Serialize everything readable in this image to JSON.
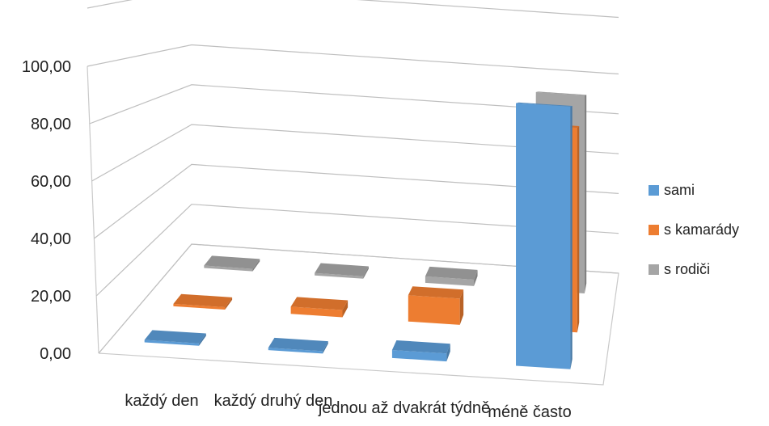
{
  "chart_data": {
    "type": "bar",
    "title": "",
    "xlabel": "",
    "ylabel": "",
    "categories": [
      "každý den",
      "každý druhý den",
      "jednou až dvakrát týdně",
      "méně často"
    ],
    "series": [
      {
        "name": "sami",
        "values": [
          0,
          0,
          2,
          95
        ],
        "color": "#5B9BD5"
      },
      {
        "name": "s kamarády",
        "values": [
          0,
          2,
          10,
          85
        ],
        "color": "#ED7D31"
      },
      {
        "name": "s rodiči",
        "values": [
          0,
          0,
          2,
          98
        ],
        "color": "#A5A5A5"
      }
    ],
    "ylim": [
      0,
      100
    ],
    "yticks": [
      "0,00",
      "20,00",
      "40,00",
      "60,00",
      "80,00",
      "100,00"
    ],
    "legend_position": "right",
    "grid": true,
    "projection": "3d"
  }
}
